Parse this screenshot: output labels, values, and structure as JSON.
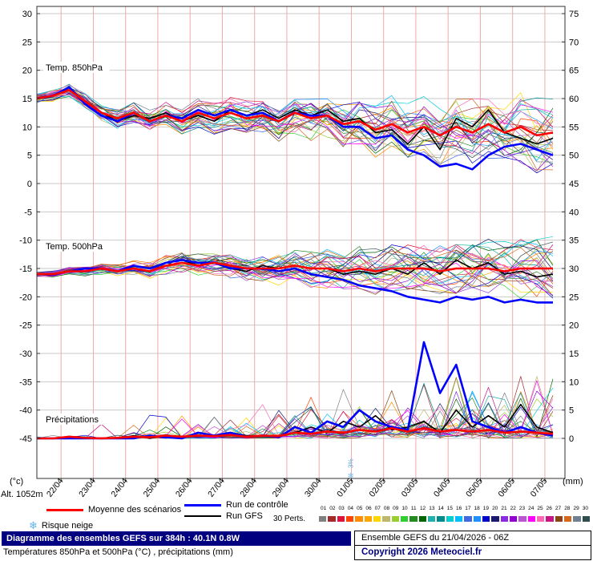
{
  "altitude_label": "Alt. 1052m",
  "axes": {
    "left_unit": "(°c)",
    "right_unit": "(mm)",
    "left_ticks": [
      30,
      25,
      20,
      15,
      10,
      5,
      0,
      -5,
      -10,
      -15,
      -20,
      -25,
      -30,
      -35,
      -40,
      -45
    ],
    "right_ticks": [
      75,
      70,
      65,
      60,
      55,
      50,
      45,
      40,
      35,
      30,
      25,
      20,
      15,
      10,
      5,
      0
    ],
    "dates": [
      "22/04",
      "23/04",
      "24/04",
      "25/04",
      "26/04",
      "27/04",
      "28/04",
      "29/04",
      "30/04",
      "01/05",
      "02/05",
      "03/05",
      "04/05",
      "05/05",
      "06/05",
      "07/05"
    ]
  },
  "legend": {
    "mean": "Moyenne des scénarios",
    "control": "Run de contrôle",
    "gfs": "Run GFS",
    "perts": "30 Perts.",
    "pert_numbers": [
      "01",
      "02",
      "03",
      "04",
      "05",
      "06",
      "07",
      "08",
      "09",
      "10",
      "11",
      "12",
      "13",
      "14",
      "15",
      "16",
      "17",
      "18",
      "19",
      "20",
      "21",
      "22",
      "23",
      "24",
      "25",
      "26",
      "27",
      "28",
      "29",
      "30"
    ],
    "snow": "Risque neige"
  },
  "snow_marker": {
    "label": "3%",
    "hour": 234
  },
  "footer": {
    "title": "Diagramme des ensembles GEFS sur 384h : 40.1N 0.8W",
    "subtitle": "Températures 850hPa et 500hPa (°C) , précipitations (mm)",
    "run_info": "Ensemble GEFS du 21/04/2026 - 06Z",
    "copyright": "Copyright 2026 Meteociel.fr"
  },
  "chart_data": {
    "type": "line",
    "x_start": "21/04 06Z",
    "x_end": "07/05 06Z",
    "x_step_hours": 12,
    "ylim_left": [
      -45,
      30
    ],
    "ylim_right": [
      0,
      75
    ],
    "series_colors": {
      "mean": "#ff0000",
      "control": "#0000ff",
      "gfs": "#000000"
    },
    "grid_colors": {
      "horizontal": "#c9c9c9",
      "vertical": "#f2a8a8"
    },
    "member_colors": [
      "#808080",
      "#a52a2a",
      "#dc143c",
      "#ff4500",
      "#ff8c00",
      "#ffa500",
      "#ffd700",
      "#bdb76b",
      "#9acd32",
      "#32cd32",
      "#228b22",
      "#006400",
      "#20b2aa",
      "#008b8b",
      "#00ced1",
      "#00bfff",
      "#4169e1",
      "#1e90ff",
      "#0000cd",
      "#191970",
      "#8a2be2",
      "#9400d3",
      "#ba55d3",
      "#ff00ff",
      "#ff69b4",
      "#c71585",
      "#8b4513",
      "#d2691e",
      "#708090",
      "#2f4f4f"
    ],
    "panels": [
      {
        "label": "Temp. 850hPa",
        "spread": [
          0.8,
          7
        ],
        "mean": [
          15.0,
          15.5,
          16.5,
          14.5,
          12.5,
          11.5,
          12.5,
          11.0,
          12.0,
          11.0,
          12.5,
          11.5,
          12.5,
          11.5,
          12.0,
          11.0,
          12.5,
          11.5,
          12.0,
          10.5,
          11.0,
          9.5,
          10.5,
          9.0,
          10.0,
          8.5,
          10.0,
          9.0,
          10.5,
          9.0,
          10.0,
          8.5,
          9.0
        ],
        "control": [
          15.0,
          15.5,
          17.0,
          14.0,
          12.0,
          11.0,
          12.5,
          11.0,
          12.0,
          11.5,
          13.0,
          12.0,
          13.0,
          12.0,
          12.5,
          11.0,
          12.5,
          12.0,
          12.0,
          10.0,
          10.0,
          8.0,
          8.5,
          6.0,
          5.0,
          3.0,
          3.5,
          2.5,
          5.0,
          6.5,
          7.0,
          6.0,
          5.0
        ],
        "gfs": [
          15.0,
          15.5,
          16.5,
          14.5,
          12.5,
          11.0,
          12.0,
          11.5,
          12.5,
          11.0,
          12.0,
          11.0,
          13.0,
          12.0,
          13.0,
          11.5,
          13.0,
          12.0,
          13.0,
          11.0,
          11.5,
          9.0,
          9.5,
          7.0,
          10.0,
          6.0,
          11.5,
          10.0,
          13.0,
          9.0,
          8.0,
          7.0,
          8.0
        ]
      },
      {
        "label": "Temp. 500hPa",
        "spread": [
          0.4,
          6
        ],
        "mean": [
          -16.0,
          -16.0,
          -15.5,
          -15.5,
          -15.0,
          -15.5,
          -15.0,
          -15.5,
          -14.5,
          -14.0,
          -14.5,
          -14.0,
          -14.5,
          -15.0,
          -15.0,
          -15.0,
          -14.5,
          -15.0,
          -15.0,
          -15.5,
          -15.0,
          -15.5,
          -15.0,
          -15.0,
          -15.0,
          -15.5,
          -15.0,
          -15.0,
          -15.0,
          -15.5,
          -15.0,
          -15.0,
          -15.0
        ],
        "control": [
          -16.0,
          -16.0,
          -15.5,
          -15.0,
          -15.0,
          -15.5,
          -14.5,
          -15.0,
          -14.0,
          -13.5,
          -14.0,
          -14.0,
          -15.0,
          -15.0,
          -15.0,
          -15.5,
          -15.0,
          -16.0,
          -16.5,
          -17.0,
          -18.0,
          -18.5,
          -19.0,
          -20.0,
          -20.5,
          -21.0,
          -20.0,
          -20.5,
          -20.0,
          -21.0,
          -20.5,
          -21.0,
          -21.0
        ],
        "gfs": [
          -16.0,
          -16.0,
          -15.5,
          -15.0,
          -15.0,
          -15.5,
          -14.5,
          -15.0,
          -14.0,
          -13.5,
          -14.5,
          -14.0,
          -15.0,
          -15.5,
          -14.5,
          -15.0,
          -14.5,
          -15.0,
          -15.0,
          -16.0,
          -15.5,
          -16.0,
          -15.0,
          -16.0,
          -14.0,
          -16.0,
          -13.5,
          -15.0,
          -14.0,
          -16.0,
          -15.5,
          -16.5,
          -16.0
        ]
      },
      {
        "label": "Précipitations",
        "precip": true,
        "spike_max": [
          2,
          14
        ],
        "mean": [
          0,
          0,
          0.3,
          0.1,
          0,
          0.1,
          0.3,
          0.2,
          0.5,
          0.3,
          0.5,
          0.4,
          0.6,
          0.3,
          0.5,
          0.4,
          1.0,
          0.8,
          1.2,
          1.0,
          1.5,
          1.2,
          1.8,
          1.2,
          1.8,
          1.2,
          1.5,
          1.2,
          1.5,
          1.0,
          1.2,
          1.0,
          0.8
        ],
        "control": [
          0,
          0,
          0,
          0,
          0,
          0,
          0,
          0.5,
          0.2,
          0,
          1.0,
          0.5,
          1.0,
          0.3,
          0.5,
          0.2,
          2.0,
          1.0,
          3.0,
          2.0,
          5.0,
          3.0,
          2.0,
          1.5,
          17.0,
          8.0,
          13.0,
          3.0,
          2.0,
          1.0,
          2.0,
          1.0,
          0.5
        ],
        "gfs": [
          0,
          0,
          0,
          0,
          0,
          0,
          0.5,
          0,
          0.5,
          0.2,
          1.0,
          0.5,
          1.0,
          0.5,
          0.5,
          0.3,
          1.0,
          2.0,
          1.0,
          3.0,
          2.0,
          4.0,
          1.5,
          2.0,
          3.0,
          1.0,
          5.0,
          2.0,
          4.0,
          2.0,
          6.0,
          2.0,
          1.0
        ]
      }
    ]
  }
}
